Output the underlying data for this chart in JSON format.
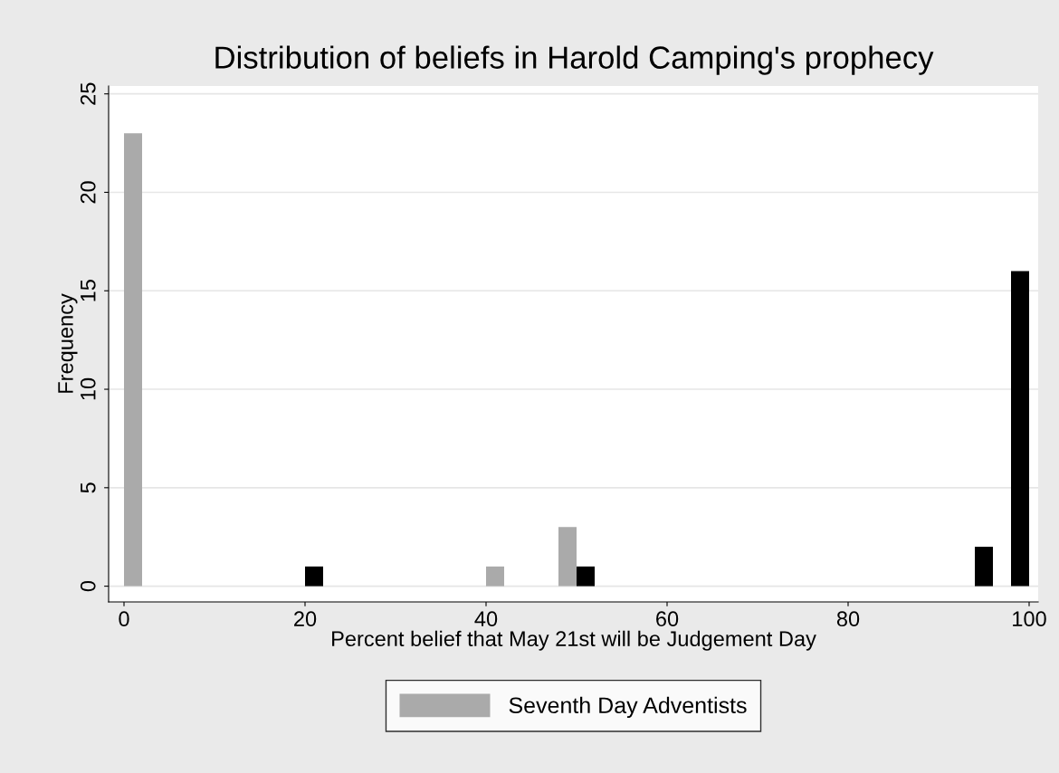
{
  "chart_data": {
    "type": "bar",
    "title": "Distribution of beliefs in Harold Camping's prophecy",
    "xlabel": "Percent belief that May 21st will be Judgement Day",
    "ylabel": "Frequency",
    "series": [
      {
        "color": "#000000",
        "x": [
          21,
          51,
          95,
          99
        ],
        "values": [
          1,
          1,
          2,
          16
        ]
      },
      {
        "name": "Seventh Day Adventists",
        "color": "#aaaaaa",
        "x": [
          1,
          41,
          49
        ],
        "values": [
          23,
          1,
          3
        ]
      }
    ],
    "xlim": [
      -1.7,
      101
    ],
    "xticks": [
      0,
      20,
      40,
      60,
      80,
      100
    ],
    "ylim": [
      -0.8,
      25.4
    ],
    "yticks": [
      0,
      5,
      10,
      15,
      20,
      25
    ],
    "grid": "y",
    "legend": "bottom"
  }
}
